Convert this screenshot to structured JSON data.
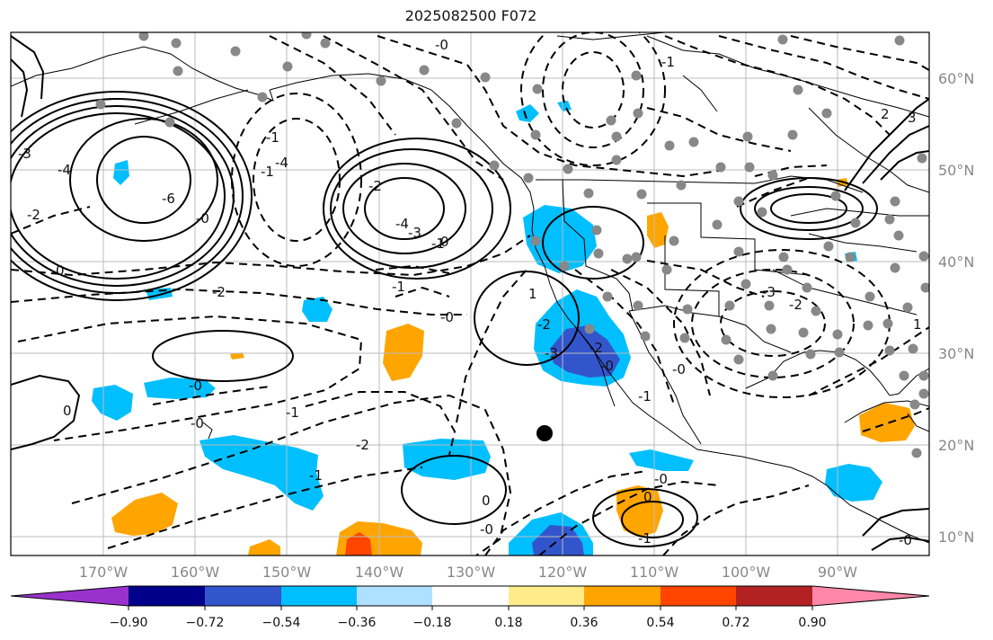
{
  "title": "2025082500 F072",
  "lon_labels": [
    "170°W",
    "160°W",
    "150°W",
    "140°W",
    "130°W",
    "120°W",
    "110°W",
    "100°W",
    "90°W"
  ],
  "lat_labels": [
    "60°N",
    "50°N",
    "40°N",
    "30°N",
    "20°N",
    "10°N"
  ],
  "colorbar": {
    "colors": [
      "#9932cc",
      "#00008b",
      "#3355cc",
      "#00bfff",
      "#aee0ff",
      "#ffffff",
      "#ffeb8a",
      "#ffa500",
      "#ff4500",
      "#b22222",
      "#ff88aa"
    ],
    "tick_labels": [
      "−0.90",
      "−0.72",
      "−0.54",
      "−0.36",
      "−0.18",
      "0.18",
      "0.36",
      "0.54",
      "0.72",
      "0.90"
    ]
  },
  "contour_labels": [
    "-0",
    "-3",
    "-4",
    "-6",
    "-0",
    "-2",
    "-1",
    "-4",
    "-2",
    "-1",
    "-3",
    "-4",
    "-1",
    "0",
    "-1",
    "-2",
    "-0",
    "-0",
    "-1",
    "-0",
    "-2",
    "-1",
    "0",
    "-0",
    "0",
    "1",
    "-2",
    "-3",
    "-0",
    "-0",
    "-1",
    "0",
    "-0",
    "-1",
    "-2",
    "-3",
    "-1",
    "2",
    "3",
    "0",
    "1",
    "-2",
    "-0"
  ],
  "marker_colors": {
    "station": "#888888",
    "center": "#000000"
  }
}
